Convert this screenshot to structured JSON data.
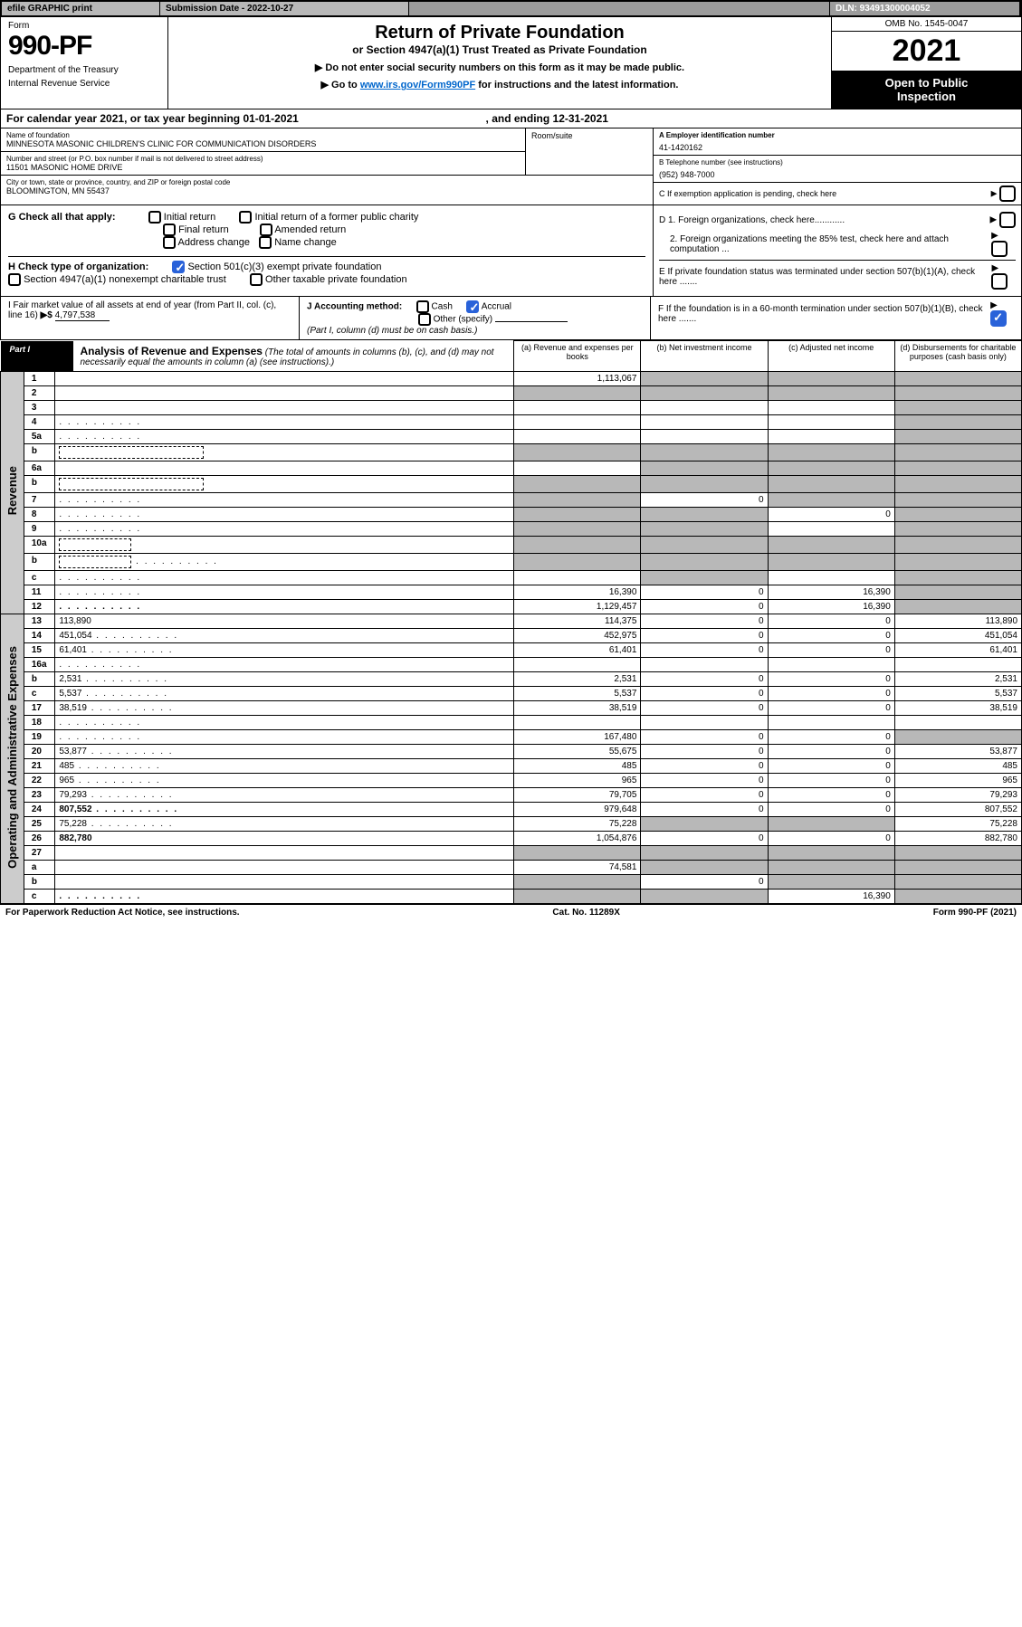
{
  "top": {
    "efile": "efile GRAPHIC print",
    "submission": "Submission Date - 2022-10-27",
    "dln": "DLN: 93491300004052"
  },
  "header": {
    "form_label": "Form",
    "form_number": "990-PF",
    "dept1": "Department of the Treasury",
    "dept2": "Internal Revenue Service",
    "title": "Return of Private Foundation",
    "subtitle": "or Section 4947(a)(1) Trust Treated as Private Foundation",
    "arrow1": "▶ Do not enter social security numbers on this form as it may be made public.",
    "arrow2_pre": "▶ Go to ",
    "arrow2_link": "www.irs.gov/Form990PF",
    "arrow2_post": " for instructions and the latest information.",
    "omb": "OMB No. 1545-0047",
    "year": "2021",
    "open1": "Open to Public",
    "open2": "Inspection"
  },
  "calendar": {
    "text_pre": "For calendar year 2021, or tax year beginning ",
    "begin": "01-01-2021",
    "text_mid": " , and ending ",
    "end": "12-31-2021"
  },
  "org": {
    "name_label": "Name of foundation",
    "name": "MINNESOTA MASONIC CHILDREN'S CLINIC FOR COMMUNICATION DISORDERS",
    "addr_label": "Number and street (or P.O. box number if mail is not delivered to street address)",
    "addr": "11501 MASONIC HOME DRIVE",
    "room_label": "Room/suite",
    "city_label": "City or town, state or province, country, and ZIP or foreign postal code",
    "city": "BLOOMINGTON, MN  55437",
    "ein_label": "A Employer identification number",
    "ein": "41-1420162",
    "phone_label": "B Telephone number (see instructions)",
    "phone": "(952) 948-7000",
    "c_label": "C If exemption application is pending, check here"
  },
  "g": {
    "label": "G Check all that apply:",
    "opts": [
      "Initial return",
      "Initial return of a former public charity",
      "Final return",
      "Amended return",
      "Address change",
      "Name change"
    ]
  },
  "h": {
    "label": "H Check type of organization:",
    "opt1": "Section 501(c)(3) exempt private foundation",
    "opt2": "Section 4947(a)(1) nonexempt charitable trust",
    "opt3": "Other taxable private foundation"
  },
  "d": {
    "d1": "D 1. Foreign organizations, check here............",
    "d2": "2. Foreign organizations meeting the 85% test, check here and attach computation ...",
    "e": "E  If private foundation status was terminated under section 507(b)(1)(A), check here .......",
    "f": "F  If the foundation is in a 60-month termination under section 507(b)(1)(B), check here ......."
  },
  "i": {
    "label": "I Fair market value of all assets at end of year (from Part II, col. (c), line 16)",
    "arrow": "▶$",
    "value": "4,797,538"
  },
  "j": {
    "label": "J Accounting method:",
    "cash": "Cash",
    "accrual": "Accrual",
    "other": "Other (specify)",
    "note": "(Part I, column (d) must be on cash basis.)"
  },
  "part1": {
    "label": "Part I",
    "title": "Analysis of Revenue and Expenses",
    "title_note": " (The total of amounts in columns (b), (c), and (d) may not necessarily equal the amounts in column (a) (see instructions).)",
    "col_a": "(a)   Revenue and expenses per books",
    "col_b": "(b)   Net investment income",
    "col_c": "(c)   Adjusted net income",
    "col_d": "(d)   Disbursements for charitable purposes (cash basis only)"
  },
  "side_labels": {
    "revenue": "Revenue",
    "expenses": "Operating and Administrative Expenses"
  },
  "rows": [
    {
      "n": "1",
      "d": "",
      "a": "1,113,067",
      "b": "",
      "c": "",
      "shade_b": true,
      "shade_c": true,
      "shade_d": true
    },
    {
      "n": "2",
      "d": "",
      "a": "",
      "b": "",
      "c": "",
      "shade_all": true,
      "nobold_not": true
    },
    {
      "n": "3",
      "d": "",
      "a": "",
      "b": "",
      "c": "",
      "shade_d": true
    },
    {
      "n": "4",
      "d": "",
      "a": "",
      "b": "",
      "c": "",
      "shade_d": true,
      "dots": true
    },
    {
      "n": "5a",
      "d": "",
      "a": "",
      "b": "",
      "c": "",
      "shade_d": true,
      "dots": true
    },
    {
      "n": "b",
      "d": "",
      "a": "",
      "b": "",
      "c": "",
      "shade_all": true,
      "dashbox": true
    },
    {
      "n": "6a",
      "d": "",
      "a": "",
      "b": "",
      "c": "",
      "shade_b": true,
      "shade_c": true,
      "shade_d": true
    },
    {
      "n": "b",
      "d": "",
      "a": "",
      "b": "",
      "c": "",
      "shade_all": true,
      "dashbox": true
    },
    {
      "n": "7",
      "d": "",
      "a": "",
      "b": "0",
      "c": "",
      "shade_a": true,
      "shade_c": true,
      "shade_d": true,
      "dots": true
    },
    {
      "n": "8",
      "d": "",
      "a": "",
      "b": "",
      "c": "0",
      "shade_a": true,
      "shade_b": true,
      "shade_d": true,
      "dots": true
    },
    {
      "n": "9",
      "d": "",
      "a": "",
      "b": "",
      "c": "",
      "shade_a": true,
      "shade_b": true,
      "shade_d": true,
      "dots": true
    },
    {
      "n": "10a",
      "d": "",
      "a": "",
      "b": "",
      "c": "",
      "shade_all": true,
      "dashbox_short": true
    },
    {
      "n": "b",
      "d": "",
      "a": "",
      "b": "",
      "c": "",
      "shade_all": true,
      "dashbox_short": true,
      "dots": true
    },
    {
      "n": "c",
      "d": "",
      "a": "",
      "b": "",
      "c": "",
      "shade_b": true,
      "shade_d": true,
      "dots": true
    },
    {
      "n": "11",
      "d": "",
      "a": "16,390",
      "b": "0",
      "c": "16,390",
      "shade_d": true,
      "dots": true
    },
    {
      "n": "12",
      "d": "",
      "a": "1,129,457",
      "b": "0",
      "c": "16,390",
      "bold": true,
      "shade_d": true,
      "dots": true
    },
    {
      "n": "13",
      "d": "113,890",
      "a": "114,375",
      "b": "0",
      "c": "0"
    },
    {
      "n": "14",
      "d": "451,054",
      "a": "452,975",
      "b": "0",
      "c": "0",
      "dots": true
    },
    {
      "n": "15",
      "d": "61,401",
      "a": "61,401",
      "b": "0",
      "c": "0",
      "dots": true
    },
    {
      "n": "16a",
      "d": "",
      "a": "",
      "b": "",
      "c": "",
      "dots": true
    },
    {
      "n": "b",
      "d": "2,531",
      "a": "2,531",
      "b": "0",
      "c": "0",
      "dots": true
    },
    {
      "n": "c",
      "d": "5,537",
      "a": "5,537",
      "b": "0",
      "c": "0",
      "dots": true
    },
    {
      "n": "17",
      "d": "38,519",
      "a": "38,519",
      "b": "0",
      "c": "0",
      "dots": true
    },
    {
      "n": "18",
      "d": "",
      "a": "",
      "b": "",
      "c": "",
      "dots": true
    },
    {
      "n": "19",
      "d": "",
      "a": "167,480",
      "b": "0",
      "c": "0",
      "shade_d": true,
      "dots": true
    },
    {
      "n": "20",
      "d": "53,877",
      "a": "55,675",
      "b": "0",
      "c": "0",
      "dots": true
    },
    {
      "n": "21",
      "d": "485",
      "a": "485",
      "b": "0",
      "c": "0",
      "dots": true
    },
    {
      "n": "22",
      "d": "965",
      "a": "965",
      "b": "0",
      "c": "0",
      "dots": true
    },
    {
      "n": "23",
      "d": "79,293",
      "a": "79,705",
      "b": "0",
      "c": "0",
      "dots": true
    },
    {
      "n": "24",
      "d": "807,552",
      "a": "979,648",
      "b": "0",
      "c": "0",
      "bold": true,
      "dots": true
    },
    {
      "n": "25",
      "d": "75,228",
      "a": "75,228",
      "b": "",
      "c": "",
      "shade_b": true,
      "shade_c": true,
      "dots": true
    },
    {
      "n": "26",
      "d": "882,780",
      "a": "1,054,876",
      "b": "0",
      "c": "0",
      "bold": true
    },
    {
      "n": "27",
      "d": "",
      "a": "",
      "b": "",
      "c": "",
      "shade_all": true
    },
    {
      "n": "a",
      "d": "",
      "a": "74,581",
      "b": "",
      "c": "",
      "bold": true,
      "shade_b": true,
      "shade_c": true,
      "shade_d": true
    },
    {
      "n": "b",
      "d": "",
      "a": "",
      "b": "0",
      "c": "",
      "bold": true,
      "shade_a": true,
      "shade_c": true,
      "shade_d": true
    },
    {
      "n": "c",
      "d": "",
      "a": "",
      "b": "",
      "c": "16,390",
      "bold": true,
      "shade_a": true,
      "shade_b": true,
      "shade_d": true,
      "dots": true
    }
  ],
  "footer": {
    "left": "For Paperwork Reduction Act Notice, see instructions.",
    "mid": "Cat. No. 11289X",
    "right": "Form 990-PF (2021)"
  },
  "colors": {
    "gray_light": "#cccccc",
    "gray_mid": "#b8b8b8",
    "gray_dark": "#9c9c9c",
    "black": "#000000",
    "blue_check": "#2962d9",
    "link": "#0066cc"
  }
}
